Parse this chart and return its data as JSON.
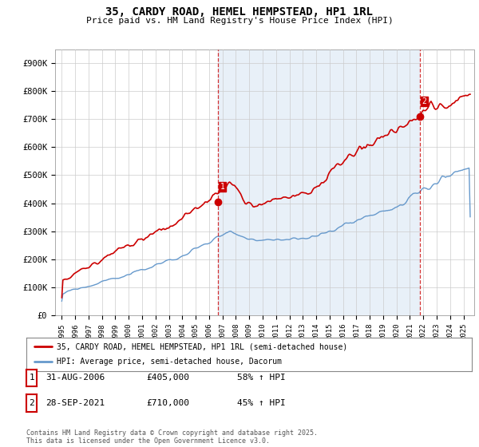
{
  "title": "35, CARDY ROAD, HEMEL HEMPSTEAD, HP1 1RL",
  "subtitle": "Price paid vs. HM Land Registry's House Price Index (HPI)",
  "ylabel_ticks": [
    "£0",
    "£100K",
    "£200K",
    "£300K",
    "£400K",
    "£500K",
    "£600K",
    "£700K",
    "£800K",
    "£900K"
  ],
  "ytick_values": [
    0,
    100000,
    200000,
    300000,
    400000,
    500000,
    600000,
    700000,
    800000,
    900000
  ],
  "ylim": [
    0,
    950000
  ],
  "red_color": "#cc0000",
  "blue_color": "#6699cc",
  "shaded_bg": "#e8f0f8",
  "marker1_date": 2006.67,
  "marker1_value": 405000,
  "marker2_date": 2021.75,
  "marker2_value": 710000,
  "legend_line1": "35, CARDY ROAD, HEMEL HEMPSTEAD, HP1 1RL (semi-detached house)",
  "legend_line2": "HPI: Average price, semi-detached house, Dacorum",
  "table_row1": [
    "1",
    "31-AUG-2006",
    "£405,000",
    "58% ↑ HPI"
  ],
  "table_row2": [
    "2",
    "28-SEP-2021",
    "£710,000",
    "45% ↑ HPI"
  ],
  "footer": "Contains HM Land Registry data © Crown copyright and database right 2025.\nThis data is licensed under the Open Government Licence v3.0.",
  "vline1_x": 2006.67,
  "vline2_x": 2021.75,
  "background_color": "#ffffff",
  "grid_color": "#cccccc",
  "xlim_left": 1994.5,
  "xlim_right": 2025.8
}
